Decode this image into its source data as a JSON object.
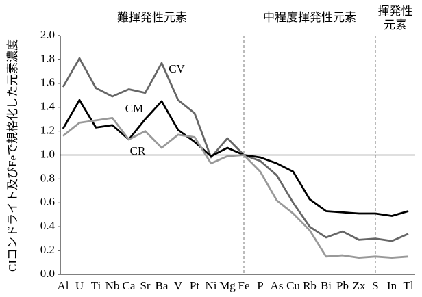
{
  "chart_data": {
    "type": "line",
    "y_label": "CIコンドライト及びFeで規格化した元素濃度",
    "groups": [
      [
        "難揮発性元素"
      ],
      [
        "中程度揮発性元素"
      ],
      [
        "揮発性",
        "元素"
      ]
    ],
    "categories": [
      "Al",
      "U",
      "Ti",
      "Nb",
      "Ca",
      "Sr",
      "Ba",
      "V",
      "Pt",
      "Ni",
      "Mg",
      "Fe",
      "P",
      "As",
      "Cu",
      "Rb",
      "Bi",
      "Pb",
      "Zx",
      "S",
      "In",
      "Tl"
    ],
    "series": [
      {
        "name": "CV",
        "color": "#666666",
        "values": [
          1.57,
          1.81,
          1.56,
          1.49,
          1.55,
          1.52,
          1.77,
          1.46,
          1.35,
          0.98,
          1.14,
          1.0,
          0.95,
          0.83,
          0.6,
          0.4,
          0.31,
          0.36,
          0.29,
          0.3,
          0.28,
          0.34
        ]
      },
      {
        "name": "CM",
        "color": "#000000",
        "values": [
          1.22,
          1.46,
          1.23,
          1.25,
          1.13,
          1.3,
          1.45,
          1.21,
          1.11,
          0.99,
          1.06,
          1.0,
          0.98,
          0.93,
          0.86,
          0.63,
          0.53,
          0.52,
          0.51,
          0.51,
          0.49,
          0.53
        ]
      },
      {
        "name": "CR",
        "color": "#999999",
        "values": [
          1.16,
          1.27,
          1.29,
          1.31,
          1.13,
          1.2,
          1.06,
          1.17,
          1.15,
          0.93,
          0.99,
          1.0,
          0.86,
          0.62,
          0.51,
          0.37,
          0.15,
          0.16,
          0.14,
          0.15,
          0.14,
          0.15
        ]
      }
    ],
    "ylim": [
      0,
      2
    ],
    "yticks": [
      {
        "value": 0,
        "label": "0.0"
      },
      0.2,
      0.4,
      0.6,
      0.8,
      {
        "value": 1,
        "label": "1.0"
      },
      1.2,
      1.4,
      1.6,
      1.8,
      {
        "value": 2,
        "label": "2.0"
      }
    ],
    "reference_line": 1,
    "dividers": [
      "Fe",
      "S"
    ]
  }
}
